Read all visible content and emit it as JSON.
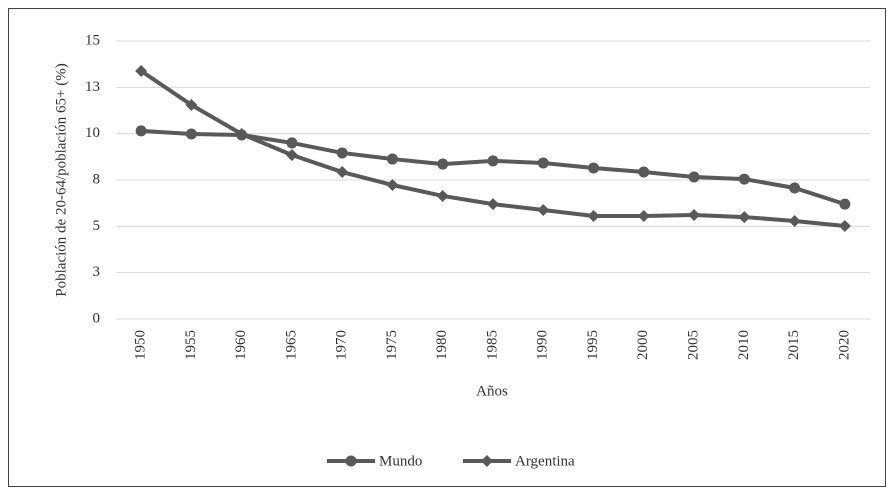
{
  "chart_data": {
    "type": "line",
    "categories": [
      "1950",
      "1955",
      "1960",
      "1965",
      "1970",
      "1975",
      "1980",
      "1985",
      "1990",
      "1995",
      "2000",
      "2005",
      "2010",
      "2015",
      "2020"
    ],
    "series": [
      {
        "name": "Mundo",
        "color": "#595959",
        "marker": "circle",
        "values": [
          10.15,
          9.98,
          9.93,
          9.5,
          8.96,
          8.63,
          8.36,
          8.53,
          8.42,
          8.15,
          7.93,
          7.66,
          7.55,
          7.07,
          6.2
        ]
      },
      {
        "name": "Argentina",
        "color": "#595959",
        "marker": "diamond",
        "values": [
          13.38,
          11.55,
          9.98,
          8.85,
          7.93,
          7.23,
          6.64,
          6.2,
          5.88,
          5.56,
          5.56,
          5.61,
          5.5,
          5.29,
          5.02
        ]
      }
    ],
    "ylim": [
      0,
      15
    ],
    "yticks": [
      0,
      {
        "value": 2.5,
        "label": "3"
      },
      5,
      {
        "value": 7.5,
        "label": "8"
      },
      10,
      {
        "value": 12.5,
        "label": "13"
      },
      15
    ],
    "ylabel": "Población de 20-64/población 65+ (%)",
    "xlabel": "Años",
    "grid": true,
    "legend": "bottom"
  }
}
